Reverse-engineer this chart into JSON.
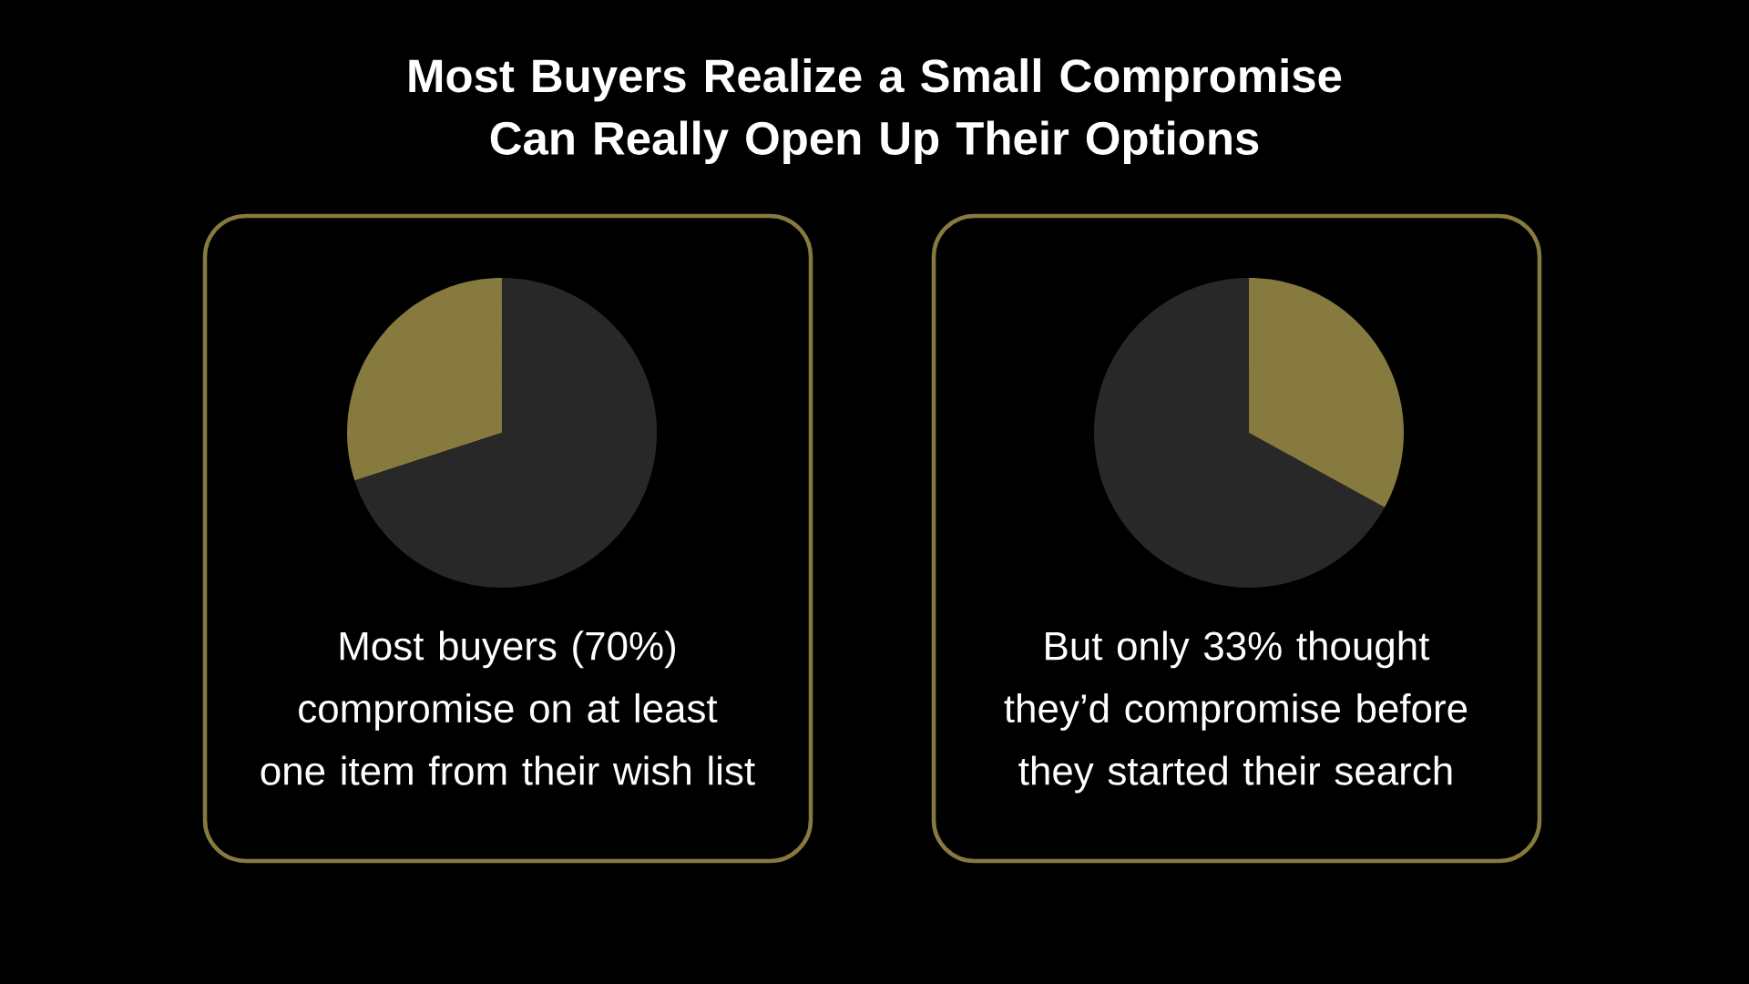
{
  "chart_data": [
    {
      "type": "pie",
      "title": "Most Buyers Realize a Small Compromise Can Really Open Up Their Options",
      "categories": [
        null,
        null
      ],
      "values": [
        30,
        70
      ],
      "colors": [
        "#877a3f",
        "#282828"
      ],
      "annotations": [
        "Most buyers (70%) compromise on at least one item from their wish list"
      ]
    },
    {
      "type": "pie",
      "categories": [
        null,
        null
      ],
      "values": [
        67,
        33
      ],
      "colors": [
        "#282828",
        "#877a3f"
      ],
      "annotations": [
        "But only 33% thought they’d compromise before they started their search"
      ]
    }
  ]
}
